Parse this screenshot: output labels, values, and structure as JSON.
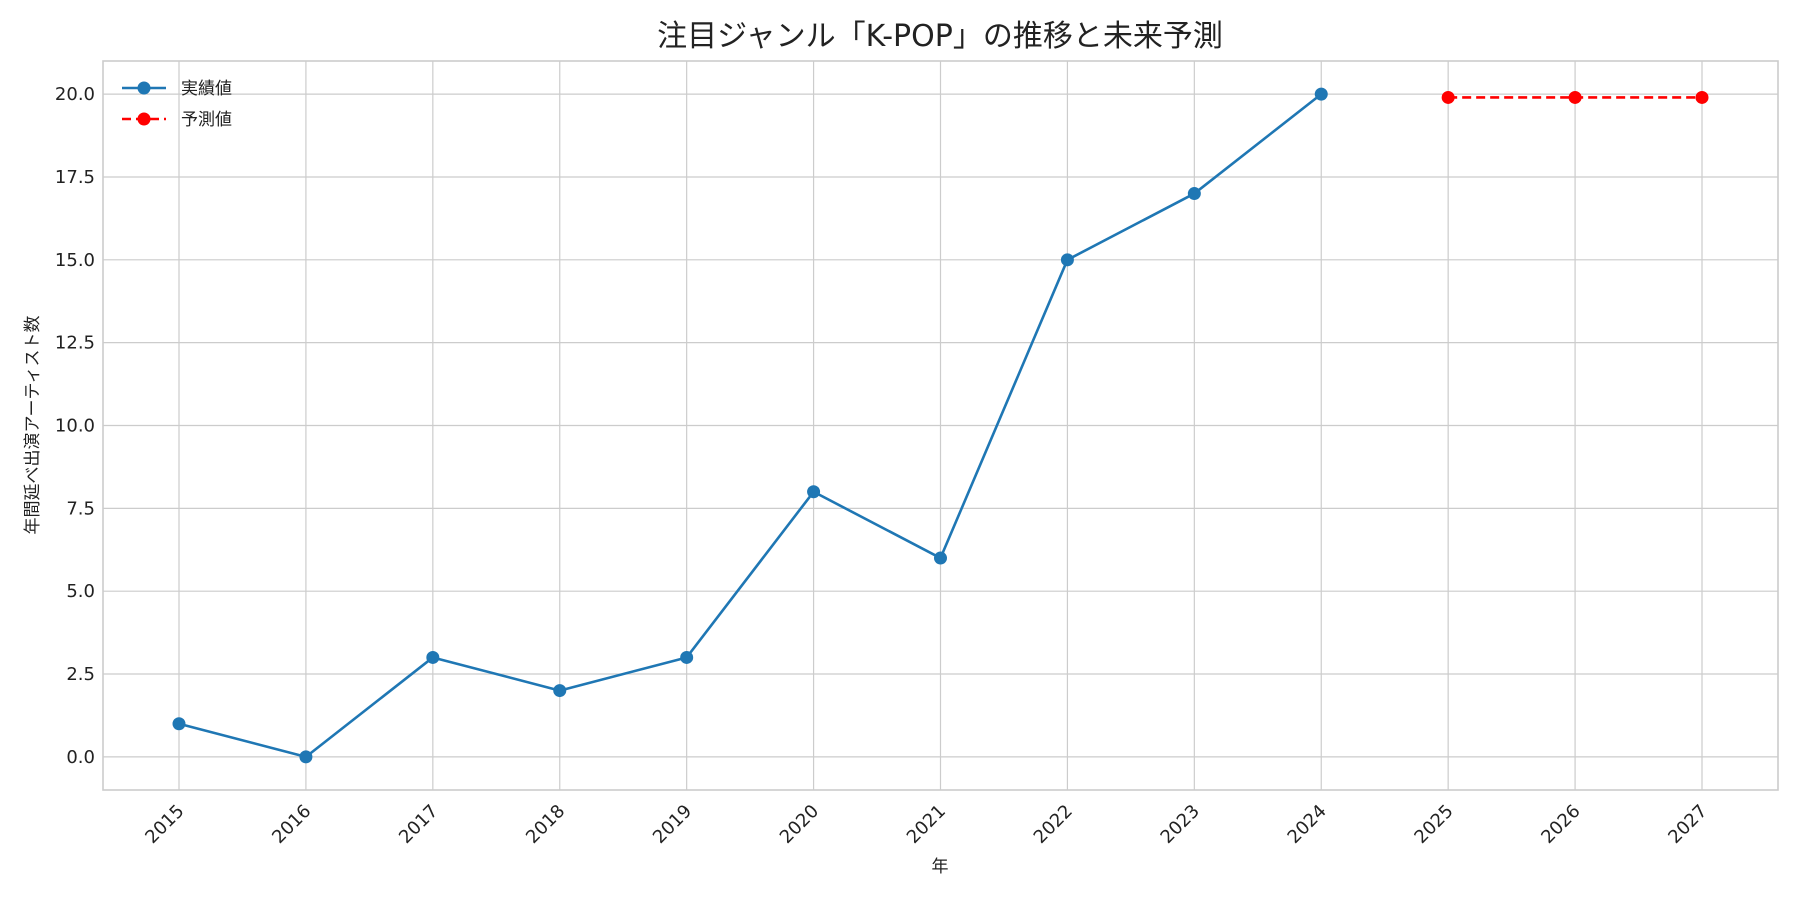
{
  "chart_data": {
    "type": "line",
    "title": "注目ジャンル「K-POP」の推移と未来予測",
    "xlabel": "年",
    "ylabel": "年間延べ出演アーティスト数",
    "x": [
      2015,
      2016,
      2017,
      2018,
      2019,
      2020,
      2021,
      2022,
      2023,
      2024,
      2025,
      2026,
      2027
    ],
    "ylim": [
      -1,
      21
    ],
    "yticks": [
      "0.0",
      "2.5",
      "5.0",
      "7.5",
      "10.0",
      "12.5",
      "15.0",
      "17.5",
      "20.0"
    ],
    "grid": true,
    "legend_position": "top-left",
    "series": [
      {
        "name": "実績値",
        "color": "#1f77b4",
        "style": "solid",
        "marker": "circle",
        "x": [
          2015,
          2016,
          2017,
          2018,
          2019,
          2020,
          2021,
          2022,
          2023,
          2024
        ],
        "values": [
          1,
          0,
          3,
          2,
          3,
          8,
          6,
          15,
          17,
          20
        ]
      },
      {
        "name": "予測値",
        "color": "#ff0000",
        "style": "dashed",
        "marker": "circle",
        "x": [
          2025,
          2026,
          2027
        ],
        "values": [
          19.9,
          19.9,
          19.9
        ]
      }
    ]
  }
}
